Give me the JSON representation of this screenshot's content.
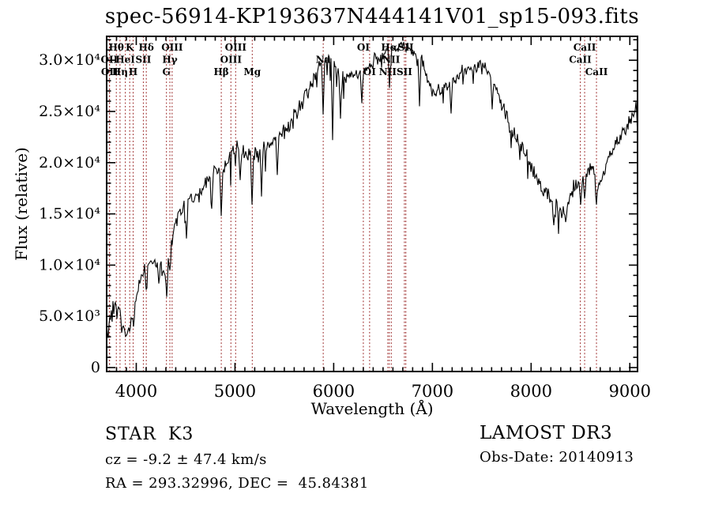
{
  "title": "spec-56914-KP193637N444141V01_sp15-093.fits",
  "colors": {
    "background": "#ffffff",
    "spectrum": "#000000",
    "axis": "#000000",
    "text": "#000000",
    "line_marker": "#a03232"
  },
  "footer": {
    "class_label": "STAR",
    "subclass": "K3",
    "survey": "LAMOST DR3",
    "cz_line": "cz = -9.2 ± 47.4 km/s",
    "obs_date_line": "Obs-Date: 20140913",
    "radec_line": "RA = 293.32996, DEC =  45.84381"
  },
  "chart_data": {
    "type": "line",
    "title": "spec-56914-KP193637N444141V01_sp15-093.fits",
    "xlabel": "Wavelength (Å)",
    "ylabel": "Flux (relative)",
    "xlim": [
      3700,
      9078
    ],
    "ylim": [
      0,
      32400
    ],
    "grid": false,
    "x_major_ticks": [
      4000,
      5000,
      6000,
      7000,
      8000,
      9000
    ],
    "x_tick_labels": [
      "4000",
      "5000",
      "6000",
      "7000",
      "8000",
      "9000"
    ],
    "x_minor_step": 100,
    "y_major_ticks": [
      0,
      5000,
      10000,
      15000,
      20000,
      25000,
      30000
    ],
    "y_tick_labels": [
      "0",
      "5.0×10³",
      "1.0×10⁴",
      "1.5×10⁴",
      "2.0×10⁴",
      "2.5×10⁴",
      "3.0×10⁴"
    ],
    "y_minor_step": 1000,
    "spectral_lines": [
      {
        "label": "OII",
        "wavelength": 3727.1,
        "row": 2
      },
      {
        "label": "OII",
        "wavelength": 3729.9,
        "row": 3
      },
      {
        "label": "Hθ",
        "wavelength": 3798.0,
        "row": 1
      },
      {
        "label": "Hη",
        "wavelength": 3835.4,
        "row": 3
      },
      {
        "label": "HeI",
        "wavelength": 3889.0,
        "row": 2
      },
      {
        "label": "K",
        "wavelength": 3933.7,
        "row": 1
      },
      {
        "label": "H",
        "wavelength": 3968.5,
        "row": 3
      },
      {
        "label": "SII",
        "wavelength": 4072.0,
        "row": 2
      },
      {
        "label": "Hδ",
        "wavelength": 4101.7,
        "row": 1
      },
      {
        "label": "G",
        "wavelength": 4305.6,
        "row": 3
      },
      {
        "label": "Hγ",
        "wavelength": 4340.5,
        "row": 2
      },
      {
        "label": "OIII",
        "wavelength": 4363.2,
        "row": 1
      },
      {
        "label": "Hβ",
        "wavelength": 4861.3,
        "row": 3
      },
      {
        "label": "OIII",
        "wavelength": 4958.9,
        "row": 2
      },
      {
        "label": "OIII",
        "wavelength": 5006.8,
        "row": 1
      },
      {
        "label": "Mg",
        "wavelength": 5175.3,
        "row": 3
      },
      {
        "label": "Na",
        "wavelength": 5894.0,
        "row": 2
      },
      {
        "label": "OI",
        "wavelength": 6300.2,
        "row": 1
      },
      {
        "label": "OI",
        "wavelength": 6363.8,
        "row": 3
      },
      {
        "label": "NII",
        "wavelength": 6548.1,
        "row": 3
      },
      {
        "label": "Hα",
        "wavelength": 6562.8,
        "row": 1
      },
      {
        "label": "NII",
        "wavelength": 6583.5,
        "row": 2
      },
      {
        "label": "SII",
        "wavelength": 6716.4,
        "row": 3
      },
      {
        "label": "SII",
        "wavelength": 6730.8,
        "row": 1
      },
      {
        "label": "CaII",
        "wavelength": 8498.0,
        "row": 2
      },
      {
        "label": "CaII",
        "wavelength": 8542.1,
        "row": 1
      },
      {
        "label": "CaII",
        "wavelength": 8662.1,
        "row": 3
      }
    ],
    "envelope_points": [
      [
        3700,
        3500,
        2000
      ],
      [
        3740,
        5300,
        1600
      ],
      [
        3780,
        5800,
        1400
      ],
      [
        3820,
        5300,
        1200
      ],
      [
        3860,
        3900,
        900
      ],
      [
        3895,
        3100,
        700
      ],
      [
        3925,
        4300,
        600
      ],
      [
        3960,
        4900,
        600
      ],
      [
        4000,
        6600,
        800
      ],
      [
        4040,
        8600,
        900
      ],
      [
        4080,
        9600,
        900
      ],
      [
        4130,
        10300,
        900
      ],
      [
        4180,
        10500,
        1000
      ],
      [
        4230,
        10100,
        1000
      ],
      [
        4285,
        9600,
        1000
      ],
      [
        4315,
        9200,
        1100
      ],
      [
        4350,
        11800,
        1500
      ],
      [
        4400,
        14000,
        1300
      ],
      [
        4450,
        15400,
        1200
      ],
      [
        4520,
        16100,
        1100
      ],
      [
        4600,
        16800,
        1100
      ],
      [
        4700,
        18000,
        1050
      ],
      [
        4790,
        19300,
        1000
      ],
      [
        4865,
        19000,
        1050
      ],
      [
        4930,
        20400,
        950
      ],
      [
        5010,
        21300,
        950
      ],
      [
        5090,
        21200,
        950
      ],
      [
        5180,
        20300,
        1300
      ],
      [
        5260,
        21200,
        1100
      ],
      [
        5360,
        22100,
        1050
      ],
      [
        5460,
        22700,
        1050
      ],
      [
        5560,
        23700,
        1050
      ],
      [
        5660,
        25400,
        1050
      ],
      [
        5740,
        27000,
        1000
      ],
      [
        5800,
        28400,
        1000
      ],
      [
        5860,
        29400,
        1000
      ],
      [
        5920,
        30300,
        950
      ],
      [
        5980,
        30000,
        950
      ],
      [
        6040,
        28800,
        950
      ],
      [
        6110,
        28000,
        950
      ],
      [
        6190,
        28300,
        900
      ],
      [
        6270,
        28800,
        900
      ],
      [
        6350,
        29400,
        880
      ],
      [
        6430,
        30100,
        850
      ],
      [
        6510,
        30800,
        800
      ],
      [
        6590,
        31200,
        750
      ],
      [
        6670,
        31400,
        720
      ],
      [
        6750,
        31200,
        720
      ],
      [
        6830,
        30900,
        720
      ],
      [
        6890,
        30300,
        750
      ],
      [
        6940,
        28700,
        800
      ],
      [
        6995,
        26800,
        820
      ],
      [
        7060,
        26900,
        820
      ],
      [
        7140,
        27500,
        800
      ],
      [
        7220,
        28100,
        780
      ],
      [
        7320,
        28900,
        760
      ],
      [
        7420,
        29300,
        730
      ],
      [
        7520,
        29300,
        730
      ],
      [
        7590,
        28700,
        800
      ],
      [
        7660,
        26900,
        900
      ],
      [
        7730,
        25200,
        920
      ],
      [
        7800,
        23300,
        920
      ],
      [
        7870,
        21900,
        920
      ],
      [
        7940,
        20700,
        920
      ],
      [
        8010,
        19400,
        920
      ],
      [
        8080,
        18100,
        930
      ],
      [
        8150,
        17000,
        950
      ],
      [
        8220,
        16000,
        1000
      ],
      [
        8290,
        14900,
        1100
      ],
      [
        8360,
        15900,
        1100
      ],
      [
        8430,
        17600,
        1050
      ],
      [
        8500,
        17700,
        980
      ],
      [
        8560,
        18800,
        960
      ],
      [
        8610,
        20300,
        930
      ],
      [
        8662,
        17900,
        1000
      ],
      [
        8720,
        18800,
        960
      ],
      [
        8800,
        20700,
        960
      ],
      [
        8880,
        22100,
        960
      ],
      [
        8960,
        23400,
        980
      ],
      [
        9030,
        24600,
        1000
      ],
      [
        9078,
        25600,
        1300
      ]
    ],
    "absorption_dips": [
      [
        3935,
        3500
      ],
      [
        3969,
        4000
      ],
      [
        4102,
        7600
      ],
      [
        4227,
        8200
      ],
      [
        4305,
        6900
      ],
      [
        4341,
        9500
      ],
      [
        4510,
        12600
      ],
      [
        4762,
        15500
      ],
      [
        4861,
        14800
      ],
      [
        5050,
        18300
      ],
      [
        5176,
        15900
      ],
      [
        5270,
        16700
      ],
      [
        5430,
        18800
      ],
      [
        5893,
        24700
      ],
      [
        5985,
        22200
      ],
      [
        6070,
        24300
      ],
      [
        6282,
        25800
      ],
      [
        6563,
        27300
      ],
      [
        6870,
        25500
      ],
      [
        7190,
        24800
      ],
      [
        7605,
        25200
      ],
      [
        8230,
        13900
      ],
      [
        8350,
        14200
      ],
      [
        8498,
        15900
      ],
      [
        8542,
        16500
      ],
      [
        8662,
        15900
      ]
    ],
    "noise_seed": 1234567
  }
}
